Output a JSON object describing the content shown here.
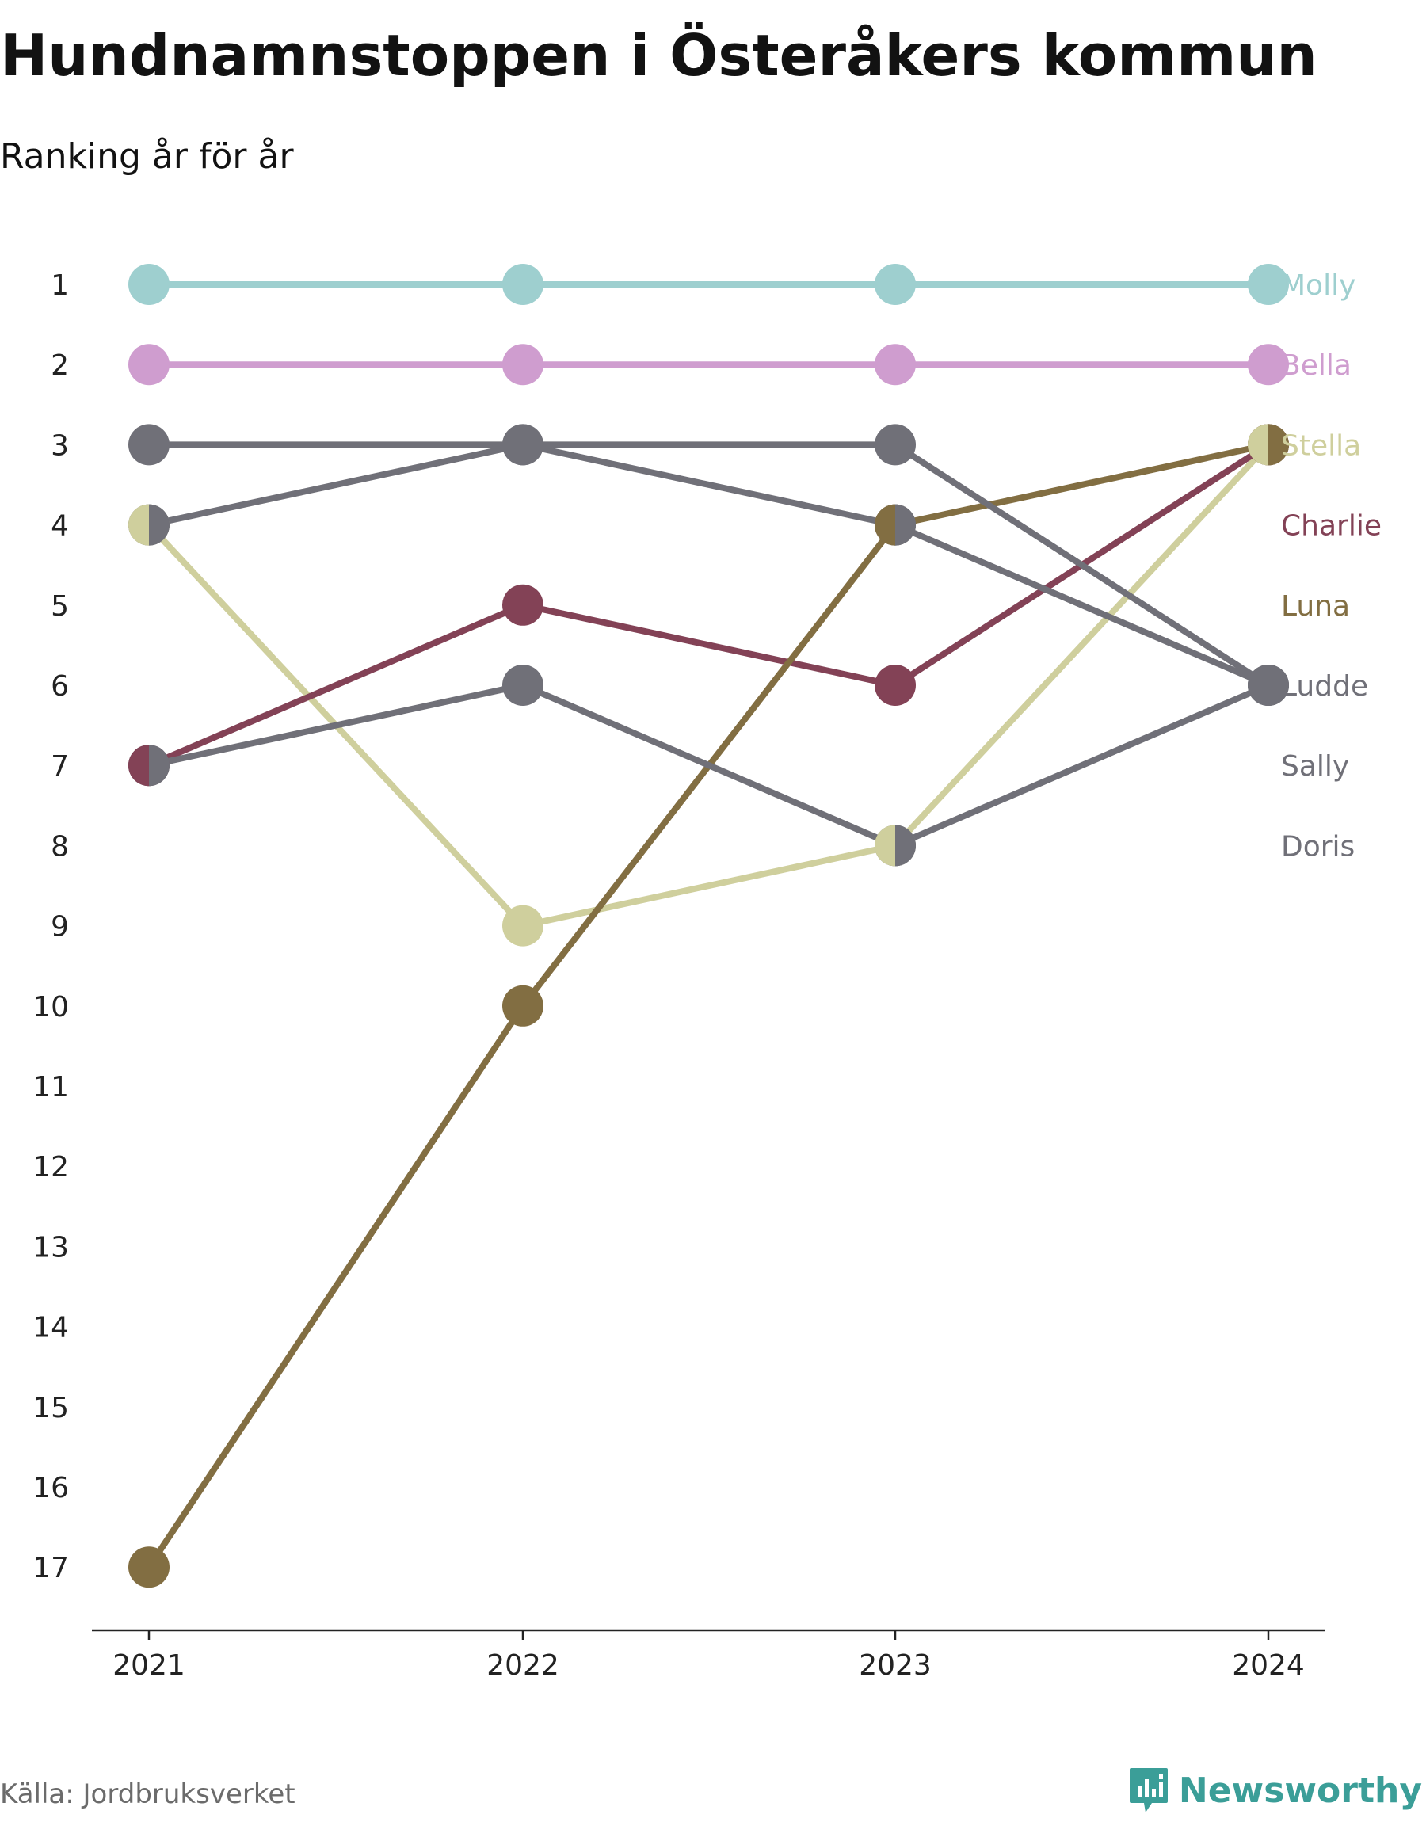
{
  "chart_data": {
    "type": "line",
    "title": "Hundnamnstoppen i Österåkers kommun",
    "subtitle": "Ranking år för år",
    "x": [
      "2021",
      "2022",
      "2023",
      "2024"
    ],
    "y_ticks": [
      "1",
      "2",
      "3",
      "4",
      "5",
      "6",
      "7",
      "8",
      "9",
      "10",
      "11",
      "12",
      "13",
      "14",
      "15",
      "16",
      "17"
    ],
    "y_range": [
      1,
      17
    ],
    "y_inverted": true,
    "grid": false,
    "legend": "right-end labels",
    "series": [
      {
        "name": "Molly",
        "color": "#9ecfcf",
        "values": [
          1,
          1,
          1,
          1
        ]
      },
      {
        "name": "Bella",
        "color": "#cf9dcf",
        "values": [
          2,
          2,
          2,
          2
        ]
      },
      {
        "name": "Stella",
        "color": "#cfcf9d",
        "values": [
          4,
          9,
          8,
          3
        ]
      },
      {
        "name": "Charlie",
        "color": "#834256",
        "values": [
          7,
          5,
          6,
          3
        ]
      },
      {
        "name": "Luna",
        "color": "#826e42",
        "values": [
          17,
          10,
          4,
          3
        ]
      },
      {
        "name": "Ludde",
        "color": "#707078",
        "values": [
          3,
          3,
          3,
          6
        ]
      },
      {
        "name": "Sally",
        "color": "#707078",
        "values": [
          4,
          3,
          4,
          6
        ]
      },
      {
        "name": "Doris",
        "color": "#707078",
        "values": [
          7,
          6,
          8,
          6
        ]
      }
    ],
    "source": "Källa: Jordbruksverket",
    "brand": "Newsworthy"
  }
}
